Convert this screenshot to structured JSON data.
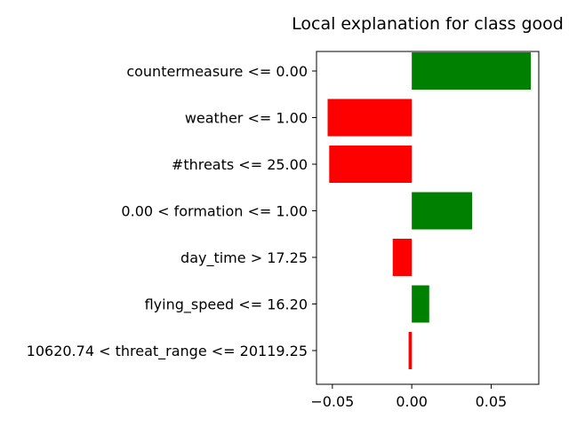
{
  "chart_data": {
    "type": "bar",
    "orientation": "horizontal",
    "title": "Local explanation for class good",
    "xlabel": "",
    "ylabel": "",
    "categories": [
      "countermeasure <= 0.00",
      "weather <= 1.00",
      "#threats <= 25.00",
      "0.00 < formation <= 1.00",
      "day_time > 17.25",
      "flying_speed <= 16.20",
      "10620.74 < threat_range <= 20119.25"
    ],
    "values": [
      0.075,
      -0.053,
      -0.052,
      0.038,
      -0.012,
      0.011,
      -0.002
    ],
    "xlim": [
      -0.06,
      0.08
    ],
    "xticks": [
      -0.05,
      0.0,
      0.05
    ],
    "xtick_labels": [
      "−0.05",
      "0.00",
      "0.05"
    ],
    "grid": false,
    "colors": {
      "positive": "#008000",
      "negative": "#ff0000"
    }
  }
}
